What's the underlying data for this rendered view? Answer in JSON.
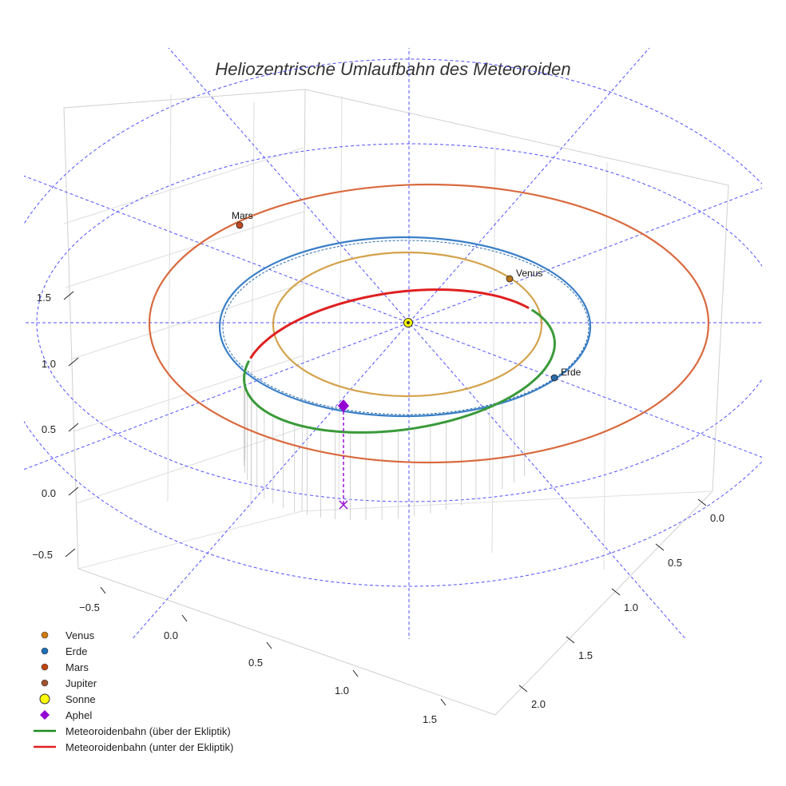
{
  "chart_data": {
    "type": "line",
    "projection": "3d",
    "title": "Heliozentrische Umlaufbahn des Meteoroiden",
    "axes": {
      "x_ticks": [
        "−0.5",
        "0.0",
        "0.5",
        "1.0",
        "1.5"
      ],
      "y_ticks": [
        "0.0",
        "0.5",
        "1.0",
        "1.5",
        "2.0"
      ],
      "z_ticks": [
        "−0.5",
        "0.0",
        "0.5",
        "1.0",
        "1.5"
      ]
    },
    "planets": [
      {
        "name": "Venus",
        "label": "Venus",
        "orbit_au": 0.72,
        "color": "#d4a24c",
        "marker_color": "#b8741a"
      },
      {
        "name": "Erde",
        "label": "Erde",
        "orbit_au": 1.0,
        "color": "#3a7fc8",
        "marker_color": "#2b6aa8"
      },
      {
        "name": "Mars",
        "label": "Mars",
        "orbit_au": 1.52,
        "color": "#d96a3e",
        "marker_color": "#c14a22"
      }
    ],
    "sun_label": "Sonne",
    "meteoroid": {
      "perihelion_au": 0.02,
      "aphelion_au": 1.02,
      "above_color": "#3a9a3a",
      "below_color": "#e02020",
      "aphel_color": "#9400d3"
    },
    "grid_color": "#5050ff",
    "legend": [
      {
        "label": "Venus",
        "marker": "dot",
        "color": "#d17a0f"
      },
      {
        "label": "Erde",
        "marker": "dot",
        "color": "#1f6fb5"
      },
      {
        "label": "Mars",
        "marker": "dot",
        "color": "#c1440e"
      },
      {
        "label": "Jupiter",
        "marker": "dot",
        "color": "#a0522d"
      },
      {
        "label": "Sonne",
        "marker": "sun",
        "color": "#ffff00"
      },
      {
        "label": "Aphel",
        "marker": "diamond",
        "color": "#9400d3"
      },
      {
        "label": "Meteoroidenbahn (über der Ekliptik)",
        "marker": "line",
        "color": "#1a8a1a"
      },
      {
        "label": "Meteoroidenbahn (unter der Ekliptik)",
        "marker": "line",
        "color": "#e02020"
      }
    ]
  }
}
